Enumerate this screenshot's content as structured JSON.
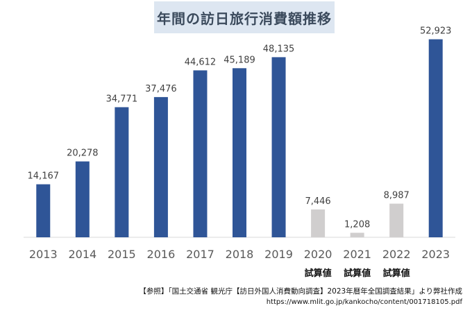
{
  "chart_data": {
    "type": "bar",
    "title": "年間の訪日旅行消費額推移",
    "categories": [
      "2013",
      "2014",
      "2015",
      "2016",
      "2017",
      "2018",
      "2019",
      "2020",
      "2021",
      "2022",
      "2023"
    ],
    "values": [
      14167,
      20278,
      34771,
      37476,
      44612,
      45189,
      48135,
      7446,
      1208,
      8987,
      52923
    ],
    "value_labels": [
      "14,167",
      "20,278",
      "34,771",
      "37,476",
      "44,612",
      "45,189",
      "48,135",
      "7,446",
      "1,208",
      "8,987",
      "52,923"
    ],
    "estimate_flags": [
      false,
      false,
      false,
      false,
      false,
      false,
      false,
      true,
      true,
      true,
      false
    ],
    "estimate_note": "試算値",
    "xlabel": "",
    "ylabel": "",
    "ylim": [
      0,
      56000
    ],
    "grid": false,
    "colors": {
      "actual": "#2f5597",
      "estimate": "#d0cece",
      "axis": "#d9d9d9",
      "label": "#404040"
    }
  },
  "footer": {
    "source": "【参照】「国土交通省 観光庁【訪日外国人消費動向調査】2023年暦年全国調査結果」より弊社作成",
    "url": "https://www.mlit.go.jp/kankocho/content/001718105.pdf"
  }
}
